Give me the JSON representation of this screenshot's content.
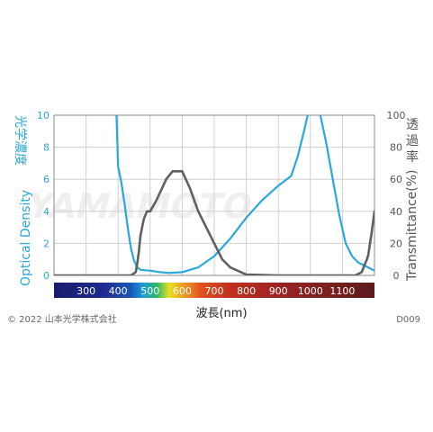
{
  "chart_data": {
    "type": "line",
    "xlabel": "波長(nm)",
    "ylabel_left": "光学濃度 Optical Density",
    "ylabel_left_jp": "光学濃度",
    "ylabel_left_en": "Optical Density",
    "ylabel_right": "透過率(%) Transmittance(%)",
    "ylabel_right_jp": [
      "透",
      "過",
      "率"
    ],
    "ylabel_right_en": "Transmittance(%)",
    "xlim": [
      200,
      1200
    ],
    "ylim_left": [
      0,
      10
    ],
    "ylim_right": [
      0,
      100
    ],
    "yticks_left": [
      "0",
      "2",
      "4",
      "6",
      "8",
      "10"
    ],
    "yticks_right": [
      "0",
      "20",
      "40",
      "60",
      "80",
      "100"
    ],
    "xticks": [
      "300",
      "400",
      "500",
      "600",
      "700",
      "800",
      "900",
      "1000",
      "1100"
    ],
    "grid": true,
    "colors": {
      "optical_density": "#29a8dc",
      "transmittance": "#606060"
    },
    "series": [
      {
        "axis": "left",
        "x": [
          390,
          395,
          400,
          410,
          420,
          430,
          440,
          450,
          460,
          470,
          500,
          530,
          560,
          600,
          650,
          700,
          750,
          800,
          850,
          900,
          940,
          960,
          980,
          995,
          1015,
          1030,
          1050,
          1070,
          1090,
          1110,
          1130,
          1150,
          1170,
          1190,
          1200
        ],
        "y": [
          10.5,
          10,
          6.8,
          5.8,
          4.5,
          3.0,
          1.7,
          0.9,
          0.5,
          0.35,
          0.3,
          0.2,
          0.15,
          0.2,
          0.5,
          1.2,
          2.3,
          3.6,
          4.7,
          5.6,
          6.2,
          7.4,
          9.0,
          10.3,
          10.5,
          10.1,
          8.2,
          6.0,
          3.8,
          2.0,
          1.2,
          0.8,
          0.6,
          0.4,
          0.3
        ]
      },
      {
        "axis": "right",
        "x": [
          200,
          300,
          400,
          440,
          455,
          460,
          465,
          470,
          480,
          490,
          500,
          520,
          550,
          570,
          600,
          625,
          650,
          700,
          725,
          750,
          800,
          900,
          1000,
          1100,
          1140,
          1160,
          1180,
          1190,
          1200
        ],
        "y": [
          0,
          0,
          0,
          0,
          2,
          8,
          15,
          25,
          35,
          40,
          40,
          47,
          60,
          65,
          65,
          54,
          40,
          20,
          10,
          5,
          0.5,
          0,
          0,
          0,
          0,
          2,
          12,
          25,
          40
        ]
      }
    ]
  },
  "watermark": "YAMAMOTO",
  "footer": {
    "copyright": "© 2022 山本光学株式会社",
    "code": "D009"
  }
}
